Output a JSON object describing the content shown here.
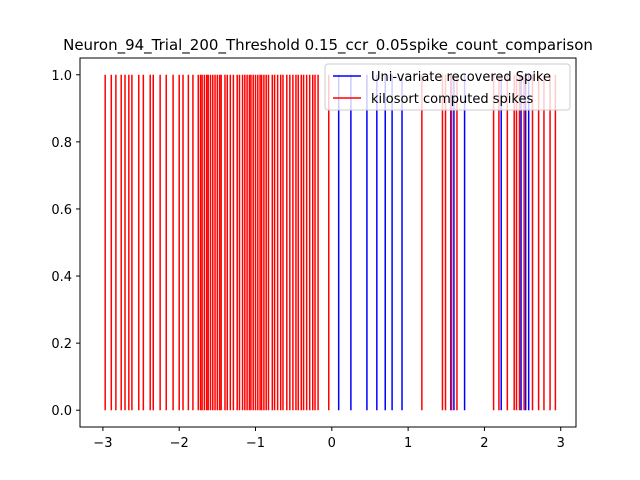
{
  "chart_data": {
    "type": "eventplot",
    "title": "Neuron_94_Trial_200_Threshold 0.15_ccr_0.05spike_count_comparison",
    "xlabel": "",
    "ylabel": "",
    "xlim": [
      -3.3,
      3.2
    ],
    "ylim": [
      -0.05,
      1.05
    ],
    "x_ticks": [
      "−3",
      "−2",
      "−1",
      "0",
      "1",
      "2",
      "3"
    ],
    "y_ticks": [
      "0.0",
      "0.2",
      "0.4",
      "0.6",
      "0.8",
      "1.0"
    ],
    "x_tick_values": [
      -3,
      -2,
      -1,
      0,
      1,
      2,
      3
    ],
    "y_tick_values": [
      0,
      0.2,
      0.4,
      0.6,
      0.8,
      1.0
    ],
    "grid": false,
    "legend_position": "top-right",
    "series": [
      {
        "name": "Uni-variate recovered Spike",
        "color": "#0000ff",
        "spike_height": [
          0,
          1
        ],
        "x": [
          0.09,
          0.25,
          0.46,
          0.59,
          0.7,
          0.79,
          0.92,
          1.56,
          1.6,
          1.74,
          2.22,
          2.48,
          2.54,
          2.58
        ]
      },
      {
        "name": "kilosort computed spikes",
        "color": "#ff0000",
        "spike_height": [
          0,
          1
        ],
        "x": [
          -2.97,
          -2.89,
          -2.83,
          -2.76,
          -2.71,
          -2.66,
          -2.62,
          -2.53,
          -2.47,
          -2.38,
          -2.34,
          -2.25,
          -2.17,
          -2.08,
          -2.0,
          -1.95,
          -1.88,
          -1.82,
          -1.75,
          -1.72,
          -1.7,
          -1.67,
          -1.64,
          -1.62,
          -1.59,
          -1.56,
          -1.53,
          -1.5,
          -1.47,
          -1.45,
          -1.4,
          -1.37,
          -1.33,
          -1.29,
          -1.24,
          -1.21,
          -1.17,
          -1.14,
          -1.11,
          -1.08,
          -1.06,
          -1.03,
          -1.0,
          -0.97,
          -0.94,
          -0.92,
          -0.89,
          -0.86,
          -0.83,
          -0.78,
          -0.75,
          -0.71,
          -0.67,
          -0.64,
          -0.59,
          -0.55,
          -0.51,
          -0.47,
          -0.44,
          -0.4,
          -0.37,
          -0.33,
          -0.29,
          -0.25,
          -0.22,
          -0.18,
          -0.04,
          1.18,
          1.45,
          1.49,
          1.57,
          1.64,
          2.12,
          2.19,
          2.3,
          2.39,
          2.42,
          2.46,
          2.52,
          2.63,
          2.71,
          2.78,
          2.86,
          2.93
        ]
      }
    ]
  }
}
